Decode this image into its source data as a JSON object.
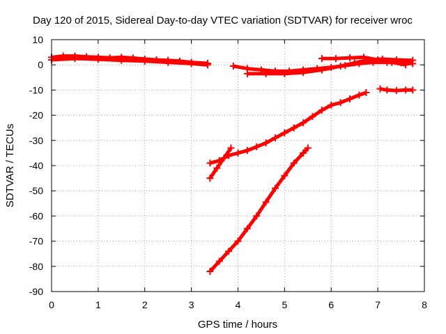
{
  "chart_data": {
    "type": "line",
    "title": "Day 120 of 2015, Sidereal Day-to-day VTEC variation (SDTVAR) for receiver wroc",
    "xlabel": "GPS time / hours",
    "ylabel": "SDTVAR / TECUs",
    "xlim": [
      0,
      8
    ],
    "ylim": [
      -90,
      10
    ],
    "xticks": [
      0,
      1,
      2,
      3,
      4,
      5,
      6,
      7,
      8
    ],
    "xtick_labels": [
      "0",
      "1",
      "2",
      "3",
      "4",
      "5",
      "6",
      "7",
      "8"
    ],
    "yticks": [
      10,
      0,
      -10,
      -20,
      -30,
      -40,
      -50,
      -60,
      -70,
      -80,
      -90
    ],
    "ytick_labels": [
      "10",
      "0",
      "-10",
      "-20",
      "-30",
      "-40",
      "-50",
      "-60",
      "-70",
      "-80",
      "-90"
    ],
    "grid": true,
    "legend": "none",
    "color": "#ff0000",
    "series": [
      {
        "x": [
          0.0,
          0.25,
          0.5,
          0.75,
          1.0,
          1.25,
          1.5,
          1.75,
          2.0,
          2.25,
          2.5,
          2.75,
          3.0,
          3.35
        ],
        "y": [
          3.0,
          3.5,
          3.5,
          3.2,
          3.0,
          2.8,
          3.0,
          2.7,
          2.3,
          2.0,
          1.8,
          1.5,
          1.0,
          0.6
        ]
      },
      {
        "x": [
          0.0,
          0.5,
          1.0,
          1.5,
          2.0,
          2.5,
          3.0,
          3.35
        ],
        "y": [
          2.0,
          2.5,
          2.2,
          1.8,
          1.5,
          1.0,
          0.5,
          0.0
        ]
      },
      {
        "x": [
          3.9,
          4.2,
          4.5,
          4.8,
          5.1,
          5.4,
          5.7,
          6.0,
          6.3,
          6.6,
          6.9,
          7.2,
          7.5,
          7.75
        ],
        "y": [
          -0.5,
          -1.5,
          -2.0,
          -2.5,
          -2.5,
          -2.0,
          -1.5,
          -1.0,
          -0.3,
          0.5,
          1.0,
          1.0,
          0.8,
          0.5
        ]
      },
      {
        "x": [
          4.2,
          4.6,
          5.0,
          5.4,
          5.8,
          6.2,
          6.5,
          6.8,
          7.1,
          7.4,
          7.75
        ],
        "y": [
          -3.5,
          -3.5,
          -3.5,
          -3.0,
          -2.0,
          -0.5,
          0.8,
          2.0,
          2.3,
          2.0,
          1.8
        ]
      },
      {
        "x": [
          5.8,
          6.1,
          6.4,
          6.7,
          7.0,
          7.3,
          7.6
        ],
        "y": [
          2.5,
          2.5,
          2.8,
          3.0,
          2.0,
          1.0,
          0.0
        ]
      },
      {
        "x": [
          3.4,
          3.6,
          3.8,
          4.0,
          4.2,
          4.4,
          4.6,
          4.8,
          5.0,
          5.2,
          5.4,
          5.6,
          5.8,
          6.0,
          6.2,
          6.4,
          6.6,
          6.75
        ],
        "y": [
          -39,
          -38,
          -36,
          -35,
          -34,
          -32.5,
          -31,
          -29,
          -27,
          -25,
          -23,
          -20.5,
          -18,
          -16,
          -15,
          -13.5,
          -12,
          -11
        ]
      },
      {
        "x": [
          3.4,
          3.55,
          3.7,
          3.85
        ],
        "y": [
          -45,
          -41,
          -37,
          -33
        ]
      },
      {
        "x": [
          3.4,
          3.6,
          3.8,
          4.0,
          4.2,
          4.4,
          4.6,
          4.8,
          5.0,
          5.2,
          5.4,
          5.5
        ],
        "y": [
          -82,
          -78,
          -74,
          -70,
          -65,
          -60,
          -54.5,
          -49,
          -44,
          -39,
          -35,
          -33
        ]
      },
      {
        "x": [
          7.05,
          7.2,
          7.4,
          7.6,
          7.75
        ],
        "y": [
          -9.5,
          -10.0,
          -10.2,
          -10.0,
          -10.0
        ]
      }
    ]
  }
}
